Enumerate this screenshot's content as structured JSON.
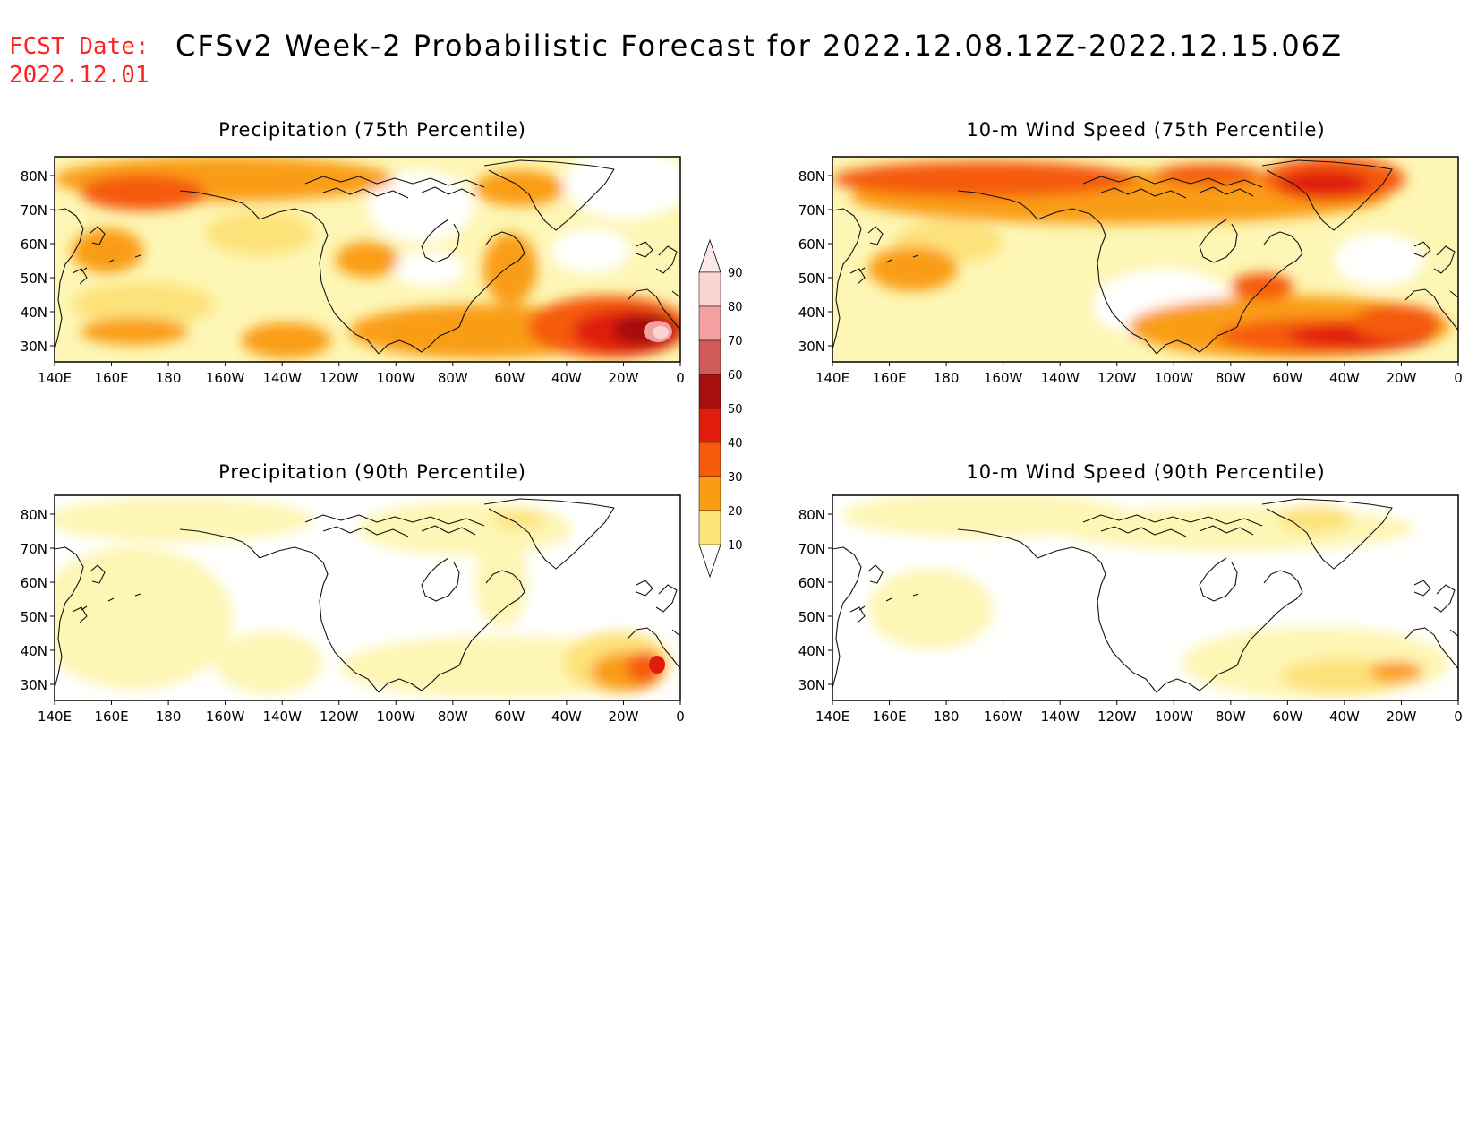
{
  "header": {
    "fcst_label": "FCST Date:",
    "fcst_date": "2022.12.01",
    "title": "CFSv2 Week-2 Probabilistic Forecast for 2022.12.08.12Z-2022.12.15.06Z"
  },
  "panels": [
    {
      "id": "precip75",
      "title": "Precipitation (75th Percentile)"
    },
    {
      "id": "wind75",
      "title": "10-m Wind Speed (75th Percentile)"
    },
    {
      "id": "precip90",
      "title": "Precipitation (90th Percentile)"
    },
    {
      "id": "wind90",
      "title": "10-m Wind Speed (90th Percentile)"
    }
  ],
  "axes": {
    "lon_labels": [
      "140E",
      "160E",
      "180",
      "160W",
      "140W",
      "120W",
      "100W",
      "80W",
      "60W",
      "40W",
      "20W",
      "0"
    ],
    "lat_labels": [
      "80N",
      "70N",
      "60N",
      "50N",
      "40N",
      "30N"
    ]
  },
  "colorbar": {
    "levels": [
      "90",
      "80",
      "70",
      "60",
      "50",
      "40",
      "30",
      "20",
      "10"
    ],
    "colors": [
      "#fbd4d4",
      "#f2a0a0",
      "#d05a5a",
      "#a50f0f",
      "#e01c0c",
      "#f55a0a",
      "#fa9d14",
      "#fde27a",
      "#fdf6b4"
    ]
  }
}
